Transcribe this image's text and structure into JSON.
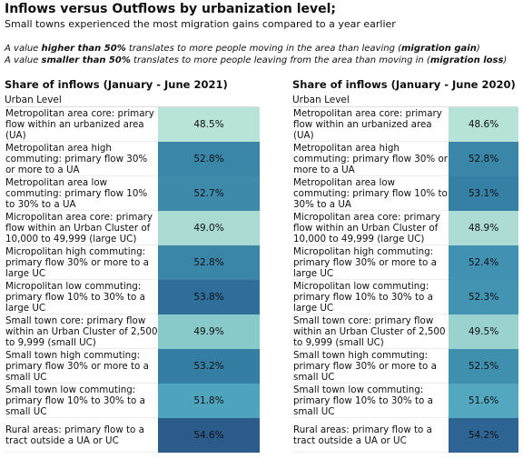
{
  "header": {
    "title": "Inflows versus Outflows by urbanization level;",
    "subtitle": "Small towns experienced the most migration gains compared to a year earlier"
  },
  "notes": [
    [
      "A value ",
      "higher than 50%",
      " translates to more people moving in the area than leaving (",
      "migration gain",
      ")"
    ],
    [
      "A value ",
      "smaller than 50%",
      " translates to more people leaving from the area than moving in (",
      "migration loss",
      ")"
    ]
  ],
  "tables": [
    {
      "title": "Share of inflows (January - June 2021)",
      "column": "Urban Level",
      "rows": [
        {
          "label": "Metropolitan area core: primary flow within an urbanized area (UA)",
          "value": "48.5%",
          "color": "#b8e3d8"
        },
        {
          "label": "Metropolitan area high commuting: primary flow 30% or more to a UA",
          "value": "52.8%",
          "color": "#3a86a8"
        },
        {
          "label": "Metropolitan area low commuting: primary flow 10% to 30% to a UA",
          "value": "52.7%",
          "color": "#3d8aab"
        },
        {
          "label": "Micropolitan area core: primary flow within an Urban Cluster of 10,000 to 49,999 (large UC)",
          "value": "49.0%",
          "color": "#a9dbd3"
        },
        {
          "label": "Micropolitan high commuting: primary flow 30% or more to a large UC",
          "value": "52.8%",
          "color": "#3a86a8"
        },
        {
          "label": "Micropolitan low commuting: primary flow 10% to 30% to a large UC",
          "value": "53.8%",
          "color": "#2f6e9a"
        },
        {
          "label": "Small town core: primary flow within an Urban Cluster of 2,500 to 9,999 (small UC)",
          "value": "49.9%",
          "color": "#88c9c9"
        },
        {
          "label": "Small town high commuting: primary flow 30% or more to a small UC",
          "value": "53.2%",
          "color": "#357ea3"
        },
        {
          "label": "Small town low commuting: primary flow 10% to 30% to a small UC",
          "value": "51.8%",
          "color": "#4ea4bd"
        },
        {
          "label": "Rural areas: primary flow to a tract outside a UA or UC",
          "value": "54.6%",
          "color": "#2b5b8a"
        }
      ]
    },
    {
      "title": "Share of inflows (January - June 2020)",
      "column": "Urban Level",
      "rows": [
        {
          "label": "Metropolitan area core: primary flow within an urbanized area (UA)",
          "value": "48.6%",
          "color": "#b6e2d7"
        },
        {
          "label": "Metropolitan area high commuting: primary flow 30% or more to a UA",
          "value": "52.8%",
          "color": "#3a86a8"
        },
        {
          "label": "Metropolitan area low commuting: primary flow 10% to 30% to a UA",
          "value": "53.1%",
          "color": "#3680a5"
        },
        {
          "label": "Micropolitan area core: primary flow within an Urban Cluster of 10,000 to 49,999 (large UC)",
          "value": "48.9%",
          "color": "#acdcd4"
        },
        {
          "label": "Micropolitan high commuting: primary flow 30% or more to a large UC",
          "value": "52.4%",
          "color": "#4192b2"
        },
        {
          "label": "Micropolitan low commuting: primary flow 10% to 30% to a large UC",
          "value": "52.3%",
          "color": "#4394b3"
        },
        {
          "label": "Small town core: primary flow within an Urban Cluster of 2,500 to 9,999 (small UC)",
          "value": "49.5%",
          "color": "#99d2cf"
        },
        {
          "label": "Small town high commuting: primary flow 30% or more to a small UC",
          "value": "52.5%",
          "color": "#3f8faf"
        },
        {
          "label": "Small town low commuting: primary flow 10% to 30% to a small UC",
          "value": "51.6%",
          "color": "#53a8bf"
        },
        {
          "label": "Rural areas: primary flow to a tract outside a UA or UC",
          "value": "54.2%",
          "color": "#2e6493"
        }
      ]
    }
  ]
}
